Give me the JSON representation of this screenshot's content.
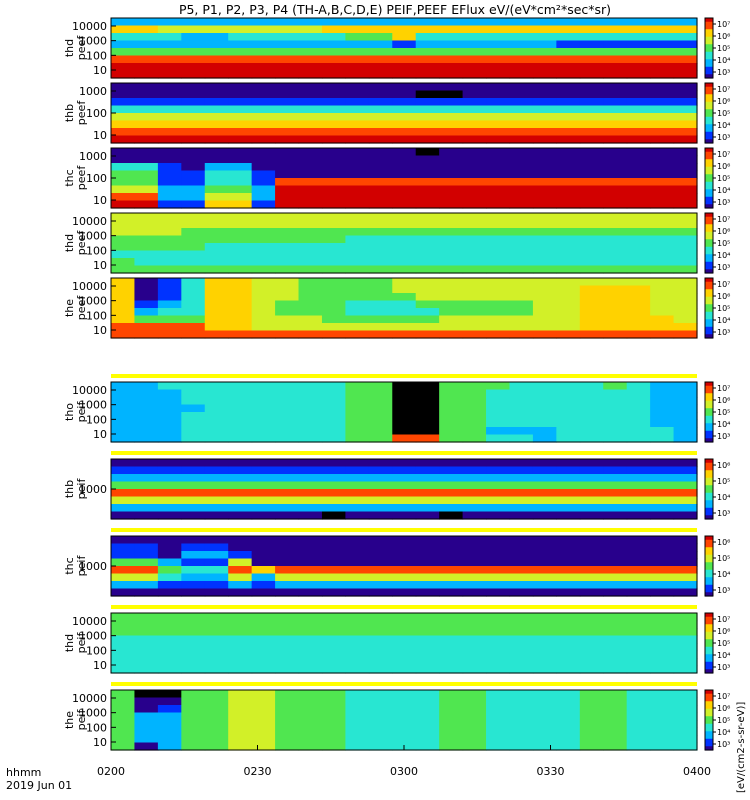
{
  "title": "P5, P1, P2, P3, P4 (TH-A,B,C,D,E) PEIF,PEEF EFlux eV/(eV*cm²*sec*sr)",
  "time_axis": {
    "ticks": [
      "0200",
      "0230",
      "0300",
      "0330",
      "0400"
    ],
    "row_label": "hhmm",
    "date_label": "2019 Jun 01"
  },
  "colorbar_label": "[eV/(cm2-s-sr-eV)]",
  "chart_data": [
    {
      "type": "heatmap",
      "ylabel": [
        "thd",
        "peef"
      ],
      "yticks": [
        "10000",
        "1000",
        "100",
        "10"
      ],
      "colorbar_ticks": [
        "10⁷",
        "10⁶",
        "10⁵",
        "10⁴",
        "10³"
      ],
      "rows": [
        "3333333333333333333333333",
        "7766666667777777777777777",
        "4443344444557444444444444",
        "3333333333332333333222222",
        "5555555555555555555555555",
        "8888888888888888888888888",
        "9999999999999999999999999",
        "9999999999999999999999999"
      ]
    },
    {
      "type": "heatmap",
      "ylabel": [
        "thb",
        "peef"
      ],
      "yticks": [
        "1000",
        "100",
        "10"
      ],
      "colorbar_ticks": [
        "10⁷",
        "10⁶",
        "10⁵",
        "10⁴",
        "10³"
      ],
      "rows": [
        "1111111111111111111111111",
        "1111111111111001111111111",
        "2222222222222222222222222",
        "4444444444444444444444444",
        "6666666666666666666666666",
        "7777777777777777777777777",
        "8888888888888888888888888",
        "9999999999999999999999999"
      ]
    },
    {
      "type": "heatmap",
      "ylabel": [
        "thc",
        "peef"
      ],
      "yticks": [
        "1000",
        "100",
        "10"
      ],
      "colorbar_ticks": [
        "10⁷",
        "10⁶",
        "10⁵",
        "10⁴",
        "10³"
      ],
      "rows": [
        "1111111111111011111111111",
        "1111111111111111111111111",
        "4421331111111111111111111",
        "5522442111111111111111111",
        "5522442888888888888888888",
        "6633553999999999999999999",
        "8833663999999999999999999",
        "9922772999999999999999999"
      ]
    },
    {
      "type": "heatmap",
      "ylabel": [
        "thd",
        "peef"
      ],
      "yticks": [
        "10000",
        "1000",
        "100",
        "10"
      ],
      "colorbar_ticks": [
        "10⁷",
        "10⁶",
        "10⁵",
        "10⁴",
        "10³"
      ],
      "rows": [
        "6666666666666666666666666",
        "6666666666666666666666666",
        "6665555555555555555555555",
        "5555555555444444444444444",
        "5555444444444444444444444",
        "4444444444444444444444444",
        "5444444444444444444444444",
        "5555555555555555555555555"
      ]
    },
    {
      "type": "heatmap",
      "ylabel": [
        "the",
        "peef"
      ],
      "yticks": [
        "10000",
        "1000",
        "100",
        "10"
      ],
      "colorbar_ticks": [
        "10⁷",
        "10⁶",
        "10⁵",
        "10⁴",
        "10³"
      ],
      "rows": [
        "7124776655556666666666666",
        "7124776655556666666677766",
        "7124776655555666666677766",
        "7234776555444555556677766",
        "7344776555444455556677766",
        "7555776665555566666677776",
        "8888776666666666666677777",
        "8888888888888888888888888"
      ]
    },
    {
      "type": "heatmap",
      "ylabel": [
        "tho",
        "peif"
      ],
      "yticks": [
        "10000",
        "1000",
        "100",
        "10"
      ],
      "colorbar_ticks": [
        "10⁷",
        "10⁶",
        "10⁵",
        "10⁴",
        "10³"
      ],
      "rows": [
        "3344444444550055544445433",
        "3334444444550055444444433",
        "3334444444550055444444433",
        "3333444444550055444444433",
        "3334444444550055444444433",
        "3334444444550055444444433",
        "3334444444550055333444443",
        "3334444444558855443444443"
      ]
    },
    {
      "type": "heatmap",
      "ylabel": [
        "thb",
        "peif"
      ],
      "yticks": [
        "1000"
      ],
      "colorbar_ticks": [
        "10⁶",
        "10⁵",
        "10⁴",
        "10³"
      ],
      "rows": [
        "1111111111111111111111111",
        "2222222222222222222222222",
        "3333333333333333333333333",
        "5555555555555555555555555",
        "8888888888888888888888888",
        "6666666666666666666666666",
        "3333333333333333333333333",
        "1111111110111101111111111"
      ]
    },
    {
      "type": "heatmap",
      "ylabel": [
        "thc",
        "peif"
      ],
      "yticks": [
        "1000"
      ],
      "colorbar_ticks": [
        "10⁶",
        "10⁵",
        "10⁴",
        "10³"
      ],
      "rows": [
        "1111111111111111111111111",
        "2212211111111111111111111",
        "2213321111111111111111111",
        "5532261111111111111111111",
        "8854487888888888888888888",
        "6643363666666666666666666",
        "3322232333333333333333333",
        "1111111111111111111111111"
      ]
    },
    {
      "type": "heatmap",
      "ylabel": [
        "thd",
        "peif"
      ],
      "yticks": [
        "10000",
        "1000",
        "100",
        "10"
      ],
      "colorbar_ticks": [
        "10⁷",
        "10⁶",
        "10⁵",
        "10⁴",
        "10³"
      ],
      "rows": [
        "5555555555555555555555555",
        "5555555555555555555555555",
        "5555555555555555555555555",
        "4444444444444444444444444",
        "4444444444444444444444444",
        "4444444444444444444444444",
        "4444444444444444444444444",
        "4444444444444444444444444"
      ]
    },
    {
      "type": "heatmap",
      "ylabel": [
        "the",
        "peif"
      ],
      "yticks": [
        "10000",
        "1000",
        "100",
        "10"
      ],
      "colorbar_ticks": [
        "10⁷",
        "10⁶",
        "10⁵",
        "10⁴",
        "10³"
      ],
      "rows": [
        "5005566555444455444455444",
        "5115566555444455444455444",
        "5125566555444455444455444",
        "5335566555444455444455444",
        "5335566555444455444455444",
        "5335566555444455444455444",
        "5335566555444455444455444",
        "5135566555444455444455444"
      ]
    }
  ],
  "colors": {
    "palette": [
      "#000000",
      "#28008c",
      "#0033ff",
      "#00b4ff",
      "#28e6d2",
      "#50e650",
      "#d2f028",
      "#ffd200",
      "#ff4600",
      "#d20000"
    ]
  }
}
